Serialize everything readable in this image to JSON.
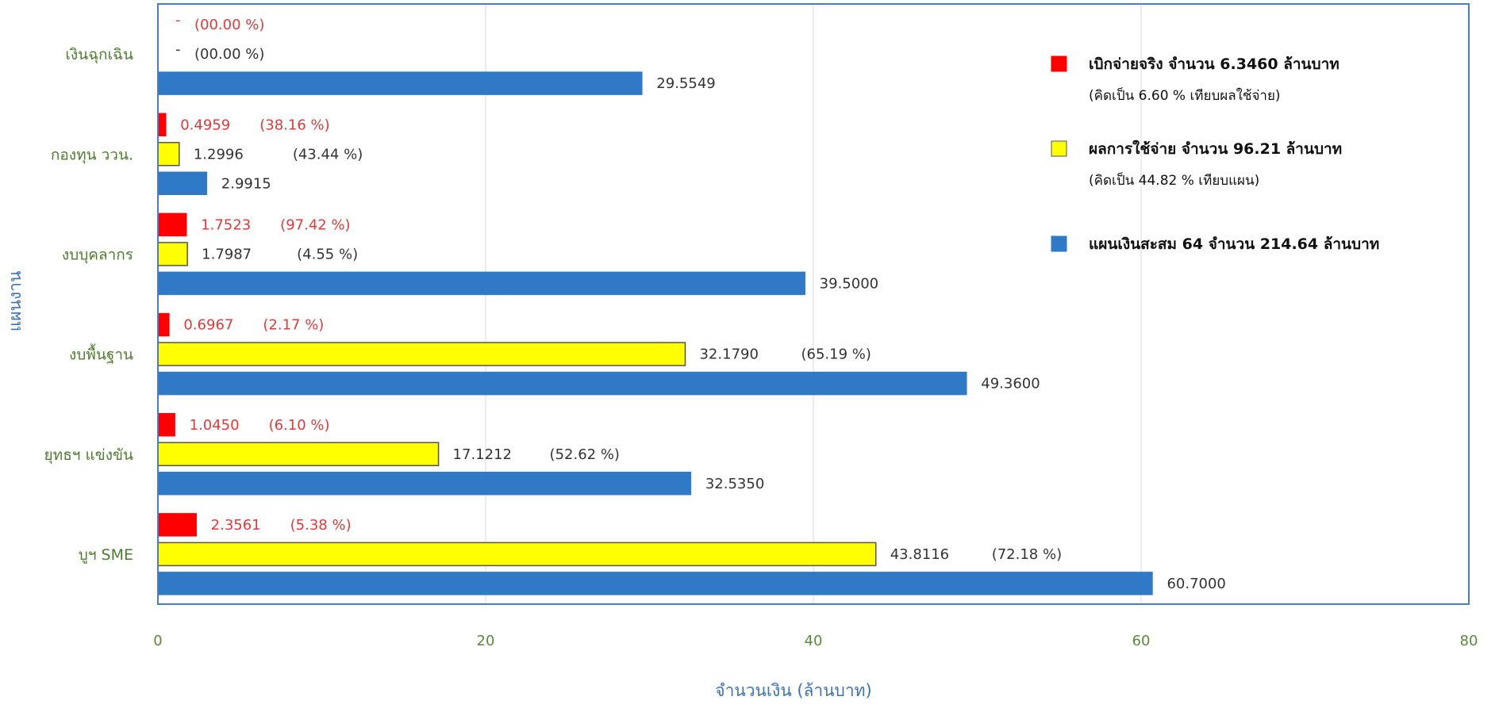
{
  "chart_data": {
    "type": "bar",
    "orientation": "horizontal",
    "xlabel": "จำนวนเงิน (ล้านบาท)",
    "ylabel": "แผนงาน",
    "xlim": [
      0,
      80
    ],
    "xticks": [
      "0",
      "20",
      "40",
      "60",
      "80"
    ],
    "grid": true,
    "legend_position": "top-right",
    "categories": [
      "เงินฉุกเฉิน",
      "กองทุน ววน.",
      "งบบุคลากร",
      "งบพื้นฐาน",
      "ยุทธฯ แข่งขัน",
      "บูฯ SME"
    ],
    "series": [
      {
        "color": "#ff0000",
        "values": [
          0,
          0.4959,
          1.7523,
          0.6967,
          1.045,
          2.3561
        ],
        "value_labels": [
          "-",
          "0.4959",
          "1.7523",
          "0.6967",
          "1.0450",
          "2.3561"
        ],
        "pct_labels": [
          "(00.00 %)",
          "(38.16 %)",
          "(97.42 %)",
          "(2.17 %)",
          "(6.10 %)",
          "(5.38 %)"
        ]
      },
      {
        "color": "#ffff00",
        "values": [
          0,
          1.2996,
          1.7987,
          32.179,
          17.1212,
          43.8116
        ],
        "value_labels": [
          "-",
          "1.2996",
          "1.7987",
          "32.1790",
          "17.1212",
          "43.8116"
        ],
        "pct_labels": [
          "(00.00 %)",
          "(43.44 %)",
          "(4.55 %)",
          "(65.19 %)",
          "(52.62 %)",
          "(72.18 %)"
        ]
      },
      {
        "color": "#2f79c6",
        "values": [
          29.5549,
          2.9915,
          39.5,
          49.36,
          32.535,
          60.7
        ],
        "value_labels": [
          "29.5549",
          "2.9915",
          "39.5000",
          "49.3600",
          "32.5350",
          "60.7000"
        ],
        "pct_labels": [
          "",
          "",
          "",
          "",
          "",
          ""
        ]
      }
    ],
    "legend": [
      {
        "color": "#ff0000",
        "line1": "เบิกจ่ายจริง จำนวน  6.3460 ล้านบาท",
        "line2": "(คิดเป็น 6.60 % เทียบผลใช้จ่าย)"
      },
      {
        "color": "#ffff00",
        "line1": "ผลการใช้จ่าย จำนวน  96.21 ล้านบาท",
        "line2": "(คิดเป็น 44.82 % เทียบแผน)"
      },
      {
        "color": "#2f79c6",
        "line1": "แผนเงินสะสม 64 จำนวน   214.64 ล้านบาท",
        "line2": ""
      }
    ]
  }
}
